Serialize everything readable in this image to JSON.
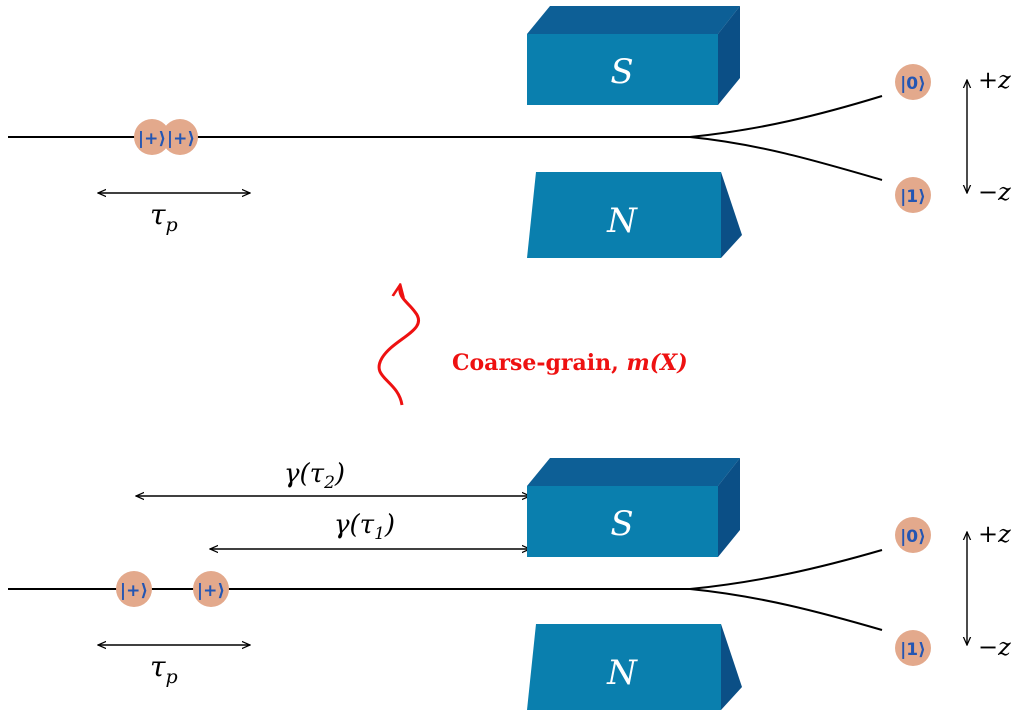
{
  "top_panel": {
    "kets_in": [
      "|+⟩",
      "|+⟩"
    ],
    "tau_label": "τ",
    "tau_sub": "p",
    "magnet_top": "S",
    "magnet_bottom": "N",
    "ket_up": "|0⟩",
    "ket_down": "|1⟩",
    "axis_up": "+z",
    "axis_down": "−z"
  },
  "middle": {
    "coarse_grain_text": "Coarse-grain, ",
    "coarse_grain_math": "m(X)",
    "color": "#ee1111"
  },
  "bottom_panel": {
    "ket_in_1": "|+⟩",
    "ket_in_2": "|+⟩",
    "gamma2_label": "γ(τ",
    "gamma2_sub": "2",
    "gamma_close": ")",
    "gamma1_label": "γ(τ",
    "gamma1_sub": "1",
    "tau_label": "τ",
    "tau_sub": "p",
    "magnet_top": "S",
    "magnet_bottom": "N",
    "ket_up": "|0⟩",
    "ket_down": "|1⟩",
    "axis_up": "+z",
    "axis_down": "−z"
  },
  "colors": {
    "magnet_front": "#0a7fae",
    "magnet_top": "#0d5f96",
    "magnet_side": "#0b4f86",
    "particle": "#e3a98c",
    "ket_text": "#2456b3",
    "line": "#000000"
  }
}
